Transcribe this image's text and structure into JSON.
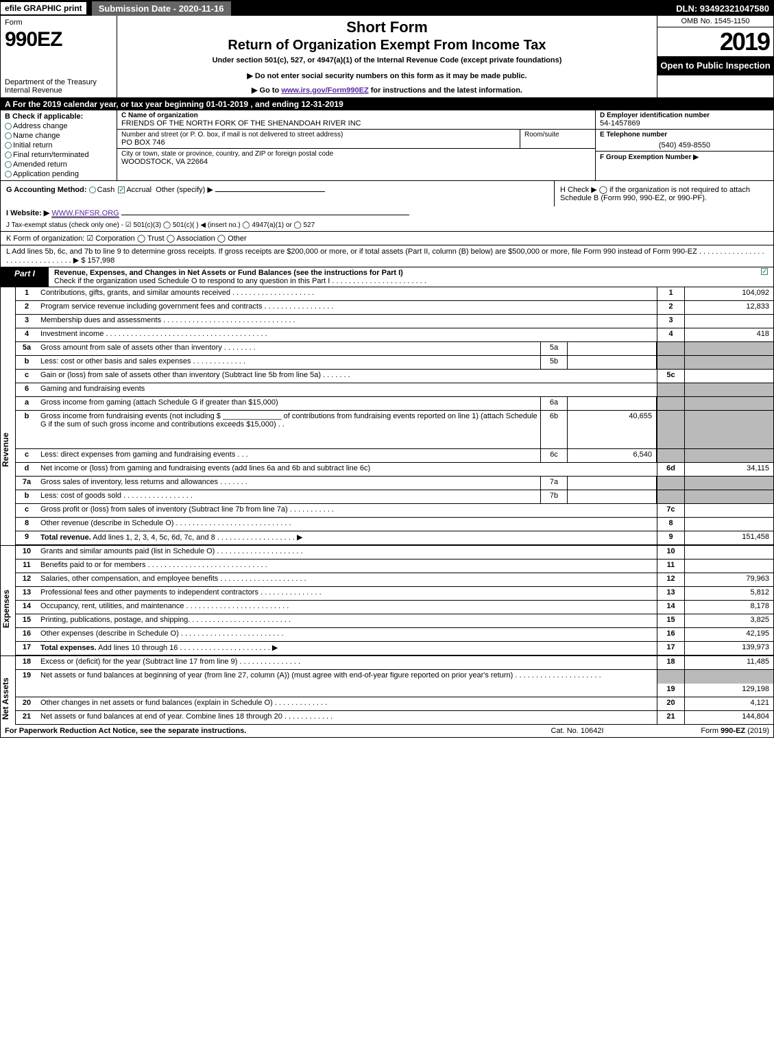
{
  "topbar": {
    "efile": "efile GRAPHIC print",
    "submission": "Submission Date - 2020-11-16",
    "dln": "DLN: 93492321047580"
  },
  "header": {
    "form_label": "Form",
    "form_num": "990EZ",
    "dept": "Department of the Treasury Internal Revenue",
    "short": "Short Form",
    "return_title": "Return of Organization Exempt From Income Tax",
    "under": "Under section 501(c), 527, or 4947(a)(1) of the Internal Revenue Code (except private foundations)",
    "donot": "▶ Do not enter social security numbers on this form as it may be made public.",
    "goto_pre": "▶ Go to ",
    "goto_link": "www.irs.gov/Form990EZ",
    "goto_post": " for instructions and the latest information.",
    "omb": "OMB No. 1545-1150",
    "year": "2019",
    "open": "Open to Public Inspection"
  },
  "taxyear": "A  For the 2019 calendar year, or tax year beginning 01-01-2019 , and ending 12-31-2019",
  "section_b": {
    "title": "B  Check if applicable:",
    "items": [
      "Address change",
      "Name change",
      "Initial return",
      "Final return/terminated",
      "Amended return",
      "Application pending"
    ]
  },
  "section_c": {
    "c_label": "C Name of organization",
    "org_name": "FRIENDS OF THE NORTH FORK OF THE SHENANDOAH RIVER INC",
    "addr_label": "Number and street (or P. O. box, if mail is not delivered to street address)",
    "addr": "PO BOX 746",
    "room_label": "Room/suite",
    "city_label": "City or town, state or province, country, and ZIP or foreign postal code",
    "city": "WOODSTOCK, VA  22664"
  },
  "section_d": {
    "d_label": "D Employer identification number",
    "ein": "54-1457869",
    "e_label": "E Telephone number",
    "phone": "(540) 459-8550",
    "f_label": "F Group Exemption Number  ▶"
  },
  "row_g": {
    "label": "G Accounting Method:",
    "cash": "Cash",
    "accrual": "Accrual",
    "other": "Other (specify) ▶"
  },
  "row_h": "H   Check ▶  ◯  if the organization is not required to attach Schedule B (Form 990, 990-EZ, or 990-PF).",
  "row_i": {
    "label": "I Website: ▶",
    "url": "WWW.FNFSR.ORG"
  },
  "row_j": "J Tax-exempt status (check only one) - ☑ 501(c)(3) ◯ 501(c)(  ) ◀ (insert no.) ◯ 4947(a)(1) or ◯ 527",
  "row_k": "K Form of organization:   ☑ Corporation  ◯ Trust  ◯ Association  ◯ Other",
  "row_l": {
    "text": "L Add lines 5b, 6c, and 7b to line 9 to determine gross receipts. If gross receipts are $200,000 or more, or if total assets (Part II, column (B) below) are $500,000 or more, file Form 990 instead of Form 990-EZ . . . . . . . . . . . . . . . . . . . . . . . . . . . . . . . . ▶ $ 157,998"
  },
  "part1": {
    "tag": "Part I",
    "title": "Revenue, Expenses, and Changes in Net Assets or Fund Balances (see the instructions for Part I)",
    "check_line": "Check if the organization used Schedule O to respond to any question in this Part I . . . . . . . . . . . . . . . . . . . . . . ."
  },
  "revenue_lines": [
    {
      "n": "1",
      "desc": "Contributions, gifts, grants, and similar amounts received . . . . . . . . . . . . . . . . . . . .",
      "rn": "1",
      "rv": "104,092"
    },
    {
      "n": "2",
      "desc": "Program service revenue including government fees and contracts . . . . . . . . . . . . . . . . .",
      "rn": "2",
      "rv": "12,833"
    },
    {
      "n": "3",
      "desc": "Membership dues and assessments . . . . . . . . . . . . . . . . . . . . . . . . . . . . . . . .",
      "rn": "3",
      "rv": ""
    },
    {
      "n": "4",
      "desc": "Investment income . . . . . . . . . . . . . . . . . . . . . . . . . . . . . . . . . . . . . . .",
      "rn": "4",
      "rv": "418"
    },
    {
      "n": "5a",
      "desc": "Gross amount from sale of assets other than inventory . . . . . . . .",
      "sn": "5a",
      "sv": "",
      "grey": true
    },
    {
      "n": "b",
      "desc": "Less: cost or other basis and sales expenses . . . . . . . . . . . . .",
      "sn": "5b",
      "sv": "",
      "grey": true
    },
    {
      "n": "c",
      "desc": "Gain or (loss) from sale of assets other than inventory (Subtract line 5b from line 5a) . . . . . . .",
      "rn": "5c",
      "rv": ""
    },
    {
      "n": "6",
      "desc": "Gaming and fundraising events",
      "grey": true,
      "noright": true
    },
    {
      "n": "a",
      "desc": "Gross income from gaming (attach Schedule G if greater than $15,000)",
      "sn": "6a",
      "sv": "",
      "grey": true
    },
    {
      "n": "b",
      "desc_multi": "Gross income from fundraising events (not including $ ______________ of contributions from fundraising events reported on line 1) (attach Schedule G if the sum of such gross income and contributions exceeds $15,000)   . .",
      "sn": "6b",
      "sv": "40,655",
      "grey": true,
      "tall": true
    },
    {
      "n": "c",
      "desc": "Less: direct expenses from gaming and fundraising events   . . .",
      "sn": "6c",
      "sv": "6,540",
      "grey": true
    },
    {
      "n": "d",
      "desc": "Net income or (loss) from gaming and fundraising events (add lines 6a and 6b and subtract line 6c)",
      "rn": "6d",
      "rv": "34,115"
    },
    {
      "n": "7a",
      "desc": "Gross sales of inventory, less returns and allowances . . . . . . .",
      "sn": "7a",
      "sv": "",
      "grey": true
    },
    {
      "n": "b",
      "desc": "Less: cost of goods sold         . . . . . . . . . . . . . . . . .",
      "sn": "7b",
      "sv": "",
      "grey": true
    },
    {
      "n": "c",
      "desc": "Gross profit or (loss) from sales of inventory (Subtract line 7b from line 7a) . . . . . . . . . . .",
      "rn": "7c",
      "rv": ""
    },
    {
      "n": "8",
      "desc": "Other revenue (describe in Schedule O) . . . . . . . . . . . . . . . . . . . . . . . . . . . .",
      "rn": "8",
      "rv": ""
    },
    {
      "n": "9",
      "desc_bold": "Total revenue.",
      "desc": " Add lines 1, 2, 3, 4, 5c, 6d, 7c, and 8  . . . . . . . . . . . . . . . . . . .   ▶",
      "rn": "9",
      "rv": "151,458"
    }
  ],
  "expense_lines": [
    {
      "n": "10",
      "desc": "Grants and similar amounts paid (list in Schedule O) . . . . . . . . . . . . . . . . . . . . .",
      "rn": "10",
      "rv": ""
    },
    {
      "n": "11",
      "desc": "Benefits paid to or for members     . . . . . . . . . . . . . . . . . . . . . . . . . . . . .",
      "rn": "11",
      "rv": ""
    },
    {
      "n": "12",
      "desc": "Salaries, other compensation, and employee benefits . . . . . . . . . . . . . . . . . . . . .",
      "rn": "12",
      "rv": "79,963"
    },
    {
      "n": "13",
      "desc": "Professional fees and other payments to independent contractors . . . . . . . . . . . . . . .",
      "rn": "13",
      "rv": "5,812"
    },
    {
      "n": "14",
      "desc": "Occupancy, rent, utilities, and maintenance . . . . . . . . . . . . . . . . . . . . . . . . .",
      "rn": "14",
      "rv": "8,178"
    },
    {
      "n": "15",
      "desc": "Printing, publications, postage, and shipping. . . . . . . . . . . . . . . . . . . . . . . . .",
      "rn": "15",
      "rv": "3,825"
    },
    {
      "n": "16",
      "desc": "Other expenses (describe in Schedule O)     . . . . . . . . . . . . . . . . . . . . . . . . .",
      "rn": "16",
      "rv": "42,195"
    },
    {
      "n": "17",
      "desc_bold": "Total expenses.",
      "desc": " Add lines 10 through 16     . . . . . . . . . . . . . . . . . . . . . .   ▶",
      "rn": "17",
      "rv": "139,973"
    }
  ],
  "netasset_lines": [
    {
      "n": "18",
      "desc": "Excess or (deficit) for the year (Subtract line 17 from line 9)       . . . . . . . . . . . . . . .",
      "rn": "18",
      "rv": "11,485"
    },
    {
      "n": "19",
      "desc_multi": "Net assets or fund balances at beginning of year (from line 27, column (A)) (must agree with end-of-year figure reported on prior year's return) . . . . . . . . . . . . . . . . . . . . .",
      "rn": "19",
      "rv": "129,198",
      "grey_first": true
    },
    {
      "n": "20",
      "desc": "Other changes in net assets or fund balances (explain in Schedule O) . . . . . . . . . . . . .",
      "rn": "20",
      "rv": "4,121"
    },
    {
      "n": "21",
      "desc": "Net assets or fund balances at end of year. Combine lines 18 through 20 . . . . . . . . . . . .",
      "rn": "21",
      "rv": "144,804"
    }
  ],
  "footer": {
    "left": "For Paperwork Reduction Act Notice, see the separate instructions.",
    "mid": "Cat. No. 10642I",
    "right_pre": "Form ",
    "right_bold": "990-EZ",
    "right_post": " (2019)"
  },
  "vlabels": {
    "revenue": "Revenue",
    "expenses": "Expenses",
    "netassets": "Net Assets"
  },
  "colors": {
    "black": "#000000",
    "white": "#ffffff",
    "grey_cell": "#bababa",
    "dark_grey": "#666666",
    "link": "#5a2ca0",
    "check_teal": "#177777"
  }
}
